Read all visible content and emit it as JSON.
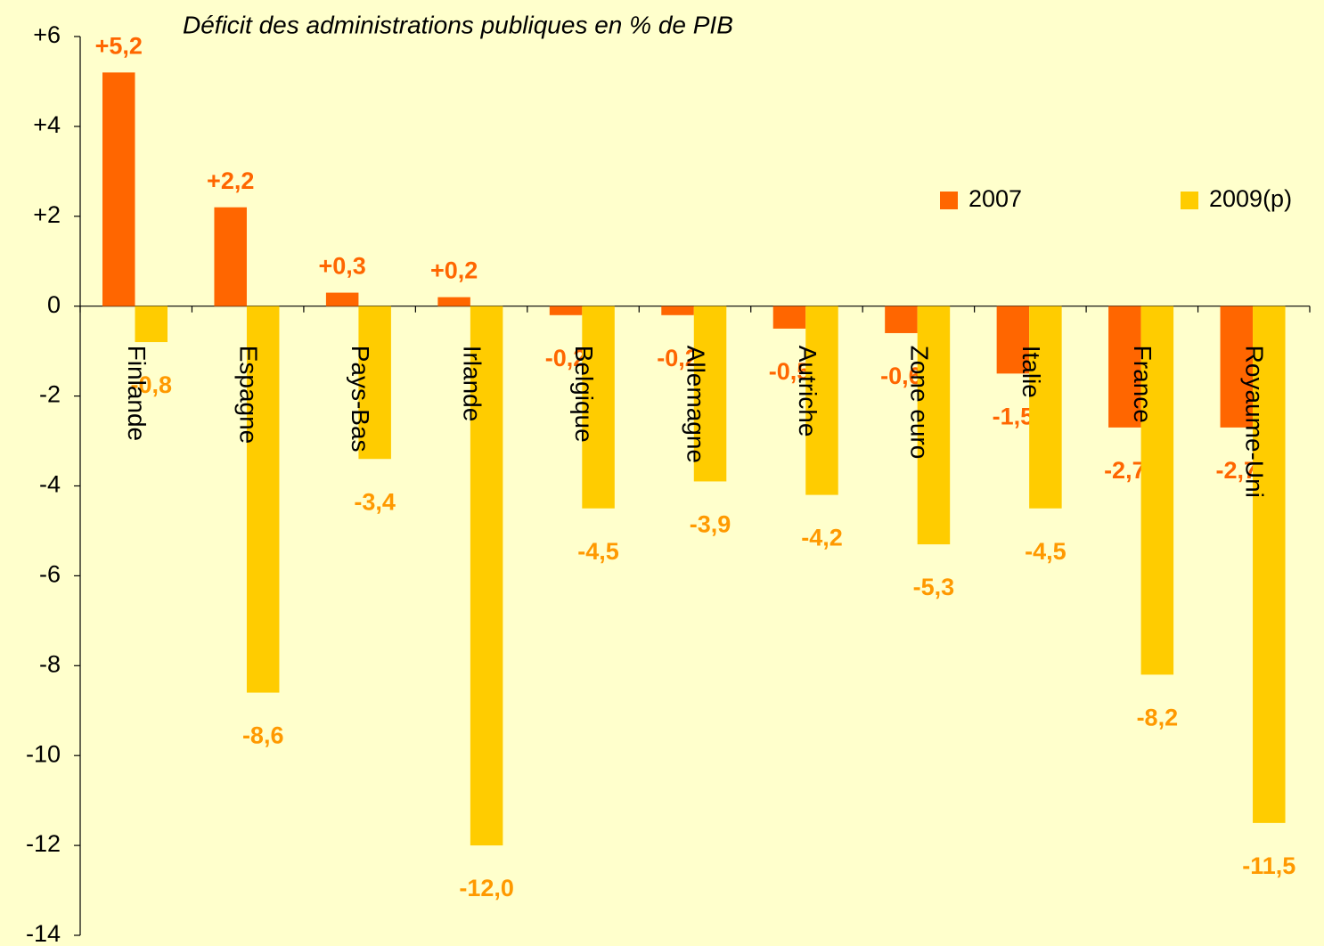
{
  "chart_data": {
    "type": "bar",
    "title": "Déficit des administrations publiques en % de PIB",
    "categories": [
      "Finlande",
      "Espagne",
      "Pays-Bas",
      "Irlande",
      "Belgique",
      "Allemagne",
      "Autriche",
      "Zone euro",
      "Italie",
      "France",
      "Royaume-Uni"
    ],
    "series": [
      {
        "name": "2007",
        "color": "#ff6600",
        "label_color": "#ff6600",
        "values": [
          5.2,
          2.2,
          0.3,
          0.2,
          -0.2,
          -0.2,
          -0.5,
          -0.6,
          -1.5,
          -2.7,
          -2.7
        ],
        "value_labels": [
          "+5,2",
          "+2,2",
          "+0,3",
          "+0,2",
          "-0,2",
          "-0,2",
          "-0,5",
          "-0,6",
          "-1,5",
          "-2,7",
          "-2,7"
        ]
      },
      {
        "name": "2009(p)",
        "color": "#ffcc00",
        "label_color": "#ff9900",
        "values": [
          -0.8,
          -8.6,
          -3.4,
          -12.0,
          -4.5,
          -3.9,
          -4.2,
          -5.3,
          -4.5,
          -8.2,
          -11.5
        ],
        "value_labels": [
          "-0,8",
          "-8,6",
          "-3,4",
          "-12,0",
          "-4,5",
          "-3,9",
          "-4,2",
          "-5,3",
          "-4,5",
          "-8,2",
          "-11,5"
        ]
      }
    ],
    "ylim": [
      -14,
      6
    ],
    "yticks": [
      {
        "value": 6,
        "label": "+6"
      },
      {
        "value": 4,
        "label": "+4"
      },
      {
        "value": 2,
        "label": "+2"
      },
      0,
      -2,
      -4,
      -6,
      -8,
      -10,
      -12,
      -14
    ],
    "legend": "top-right"
  }
}
